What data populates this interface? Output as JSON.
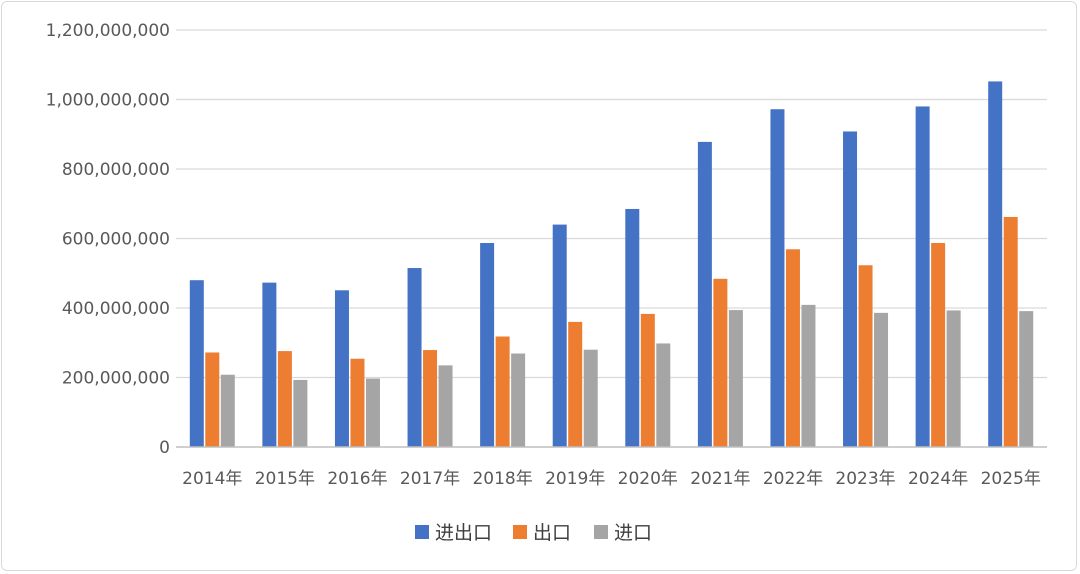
{
  "chart_data": {
    "type": "bar",
    "title": "",
    "xlabel": "",
    "ylabel": "",
    "categories": [
      "2014年",
      "2015年",
      "2016年",
      "2017年",
      "2018年",
      "2019年",
      "2020年",
      "2021年",
      "2022年",
      "2023年",
      "2024年",
      "2025年"
    ],
    "series": [
      {
        "name": "进出口",
        "color": "#4472c4",
        "values": [
          480000000,
          473000000,
          451000000,
          515000000,
          587000000,
          640000000,
          685000000,
          878000000,
          972000000,
          908000000,
          980000000,
          1052000000
        ]
      },
      {
        "name": "出口",
        "color": "#ed7d31",
        "values": [
          272000000,
          276000000,
          254000000,
          279000000,
          318000000,
          360000000,
          383000000,
          484000000,
          569000000,
          523000000,
          587000000,
          662000000
        ]
      },
      {
        "name": "进口",
        "color": "#a5a5a5",
        "values": [
          208000000,
          193000000,
          197000000,
          235000000,
          269000000,
          280000000,
          298000000,
          394000000,
          409000000,
          386000000,
          393000000,
          391000000
        ]
      }
    ],
    "ylim": [
      0,
      1200000000
    ],
    "yticks": [
      "0",
      "200,000,000",
      "400,000,000",
      "600,000,000",
      "800,000,000",
      "1,000,000,000",
      "1,200,000,000"
    ],
    "grid": true,
    "legend_position": "bottom"
  }
}
